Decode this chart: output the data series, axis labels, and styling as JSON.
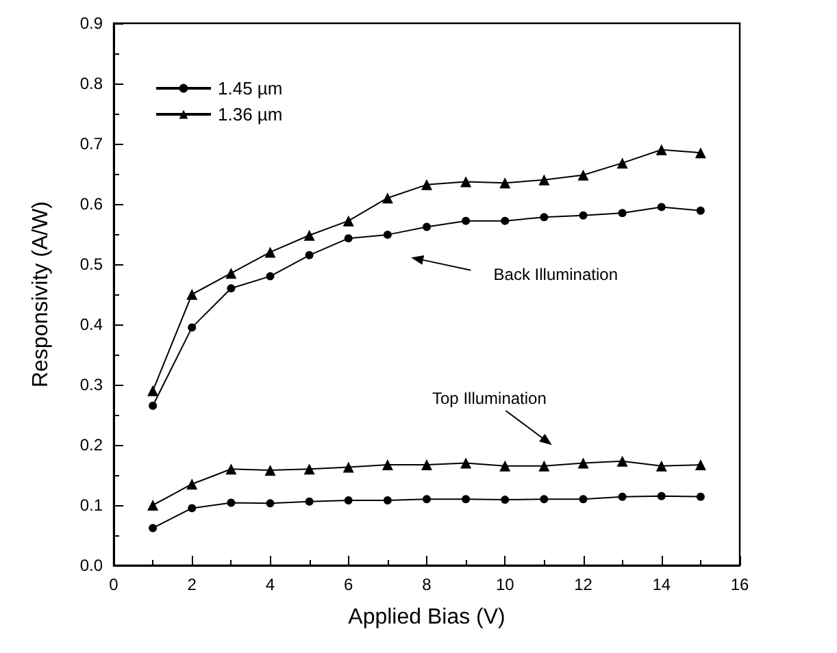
{
  "chart_data": {
    "type": "line",
    "xlabel": "Applied Bias (V)",
    "ylabel": "Responsivity (A/W)",
    "x": [
      1,
      2,
      3,
      4,
      5,
      6,
      7,
      8,
      9,
      10,
      11,
      12,
      13,
      14,
      15
    ],
    "series": [
      {
        "name": "1.45 µm",
        "color": "#000000",
        "marker": "circle",
        "values": [
          0.265,
          0.395,
          0.46,
          0.48,
          0.515,
          0.543,
          0.549,
          0.562,
          0.572,
          0.572,
          0.578,
          0.581,
          0.585,
          0.595,
          0.589
        ]
      },
      {
        "name": "1.36 µm",
        "color": "#000000",
        "marker": "triangle",
        "values": [
          0.29,
          0.45,
          0.485,
          0.52,
          0.548,
          0.572,
          0.61,
          0.632,
          0.637,
          0.635,
          0.64,
          0.648,
          0.668,
          0.69,
          0.685
        ]
      },
      {
        "color": "#000000",
        "marker": "circle",
        "values": [
          0.062,
          0.095,
          0.104,
          0.103,
          0.106,
          0.108,
          0.108,
          0.11,
          0.11,
          0.109,
          0.11,
          0.11,
          0.114,
          0.115,
          0.114
        ]
      },
      {
        "color": "#000000",
        "marker": "triangle",
        "values": [
          0.1,
          0.135,
          0.16,
          0.158,
          0.16,
          0.163,
          0.167,
          0.167,
          0.17,
          0.165,
          0.165,
          0.17,
          0.173,
          0.165,
          0.167
        ]
      }
    ],
    "xlim": [
      0,
      16
    ],
    "xticks": [
      0,
      2,
      4,
      6,
      8,
      10,
      12,
      14,
      16
    ],
    "ylim": [
      0,
      0.9
    ],
    "yticks": [
      {
        "value": 0,
        "label": "0.0"
      },
      {
        "value": 0.1,
        "label": "0.1"
      },
      {
        "value": 0.2,
        "label": "0.2"
      },
      {
        "value": 0.3,
        "label": "0.3"
      },
      {
        "value": 0.4,
        "label": "0.4"
      },
      {
        "value": 0.5,
        "label": "0.5"
      },
      {
        "value": 0.6,
        "label": "0.6"
      },
      {
        "value": 0.7,
        "label": "0.7"
      },
      {
        "value": 0.8,
        "label": "0.8"
      },
      {
        "value": 0.9,
        "label": "0.9"
      }
    ],
    "annotations": [
      "Back Illumination",
      "Top Illumination"
    ],
    "grid": false,
    "legend": "top left",
    "line_style": "solid"
  }
}
